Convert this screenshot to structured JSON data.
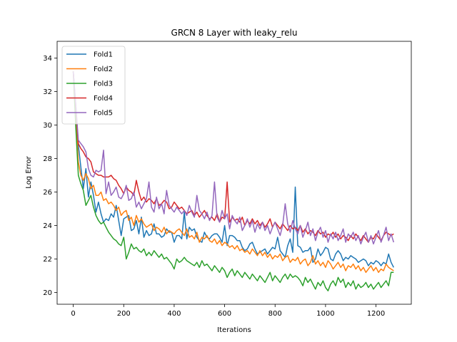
{
  "chart_data": {
    "type": "line",
    "title": "GRCN 8 Layer with leaky_relu",
    "xlabel": "Iterations",
    "ylabel": "Log Error",
    "xlim": [
      -64,
      1340
    ],
    "ylim": [
      19.3,
      35.0
    ],
    "xticks": [
      0,
      200,
      400,
      600,
      800,
      1000,
      1200
    ],
    "yticks": [
      20,
      22,
      24,
      26,
      28,
      30,
      32,
      34
    ],
    "grid": false,
    "legend_position": "top-left",
    "x": [
      0,
      10,
      20,
      30,
      40,
      50,
      60,
      70,
      80,
      90,
      100,
      110,
      120,
      130,
      140,
      150,
      160,
      170,
      180,
      190,
      200,
      210,
      220,
      230,
      240,
      250,
      260,
      270,
      280,
      290,
      300,
      310,
      320,
      330,
      340,
      350,
      360,
      370,
      380,
      390,
      400,
      410,
      420,
      430,
      440,
      450,
      460,
      470,
      480,
      490,
      500,
      510,
      520,
      530,
      540,
      550,
      560,
      570,
      580,
      590,
      600,
      610,
      620,
      630,
      640,
      650,
      660,
      670,
      680,
      690,
      700,
      710,
      720,
      730,
      740,
      750,
      760,
      770,
      780,
      790,
      800,
      810,
      820,
      830,
      840,
      850,
      860,
      870,
      880,
      890,
      900,
      910,
      920,
      930,
      940,
      950,
      960,
      970,
      980,
      990,
      1000,
      1010,
      1020,
      1030,
      1040,
      1050,
      1060,
      1070,
      1080,
      1090,
      1100,
      1110,
      1120,
      1130,
      1140,
      1150,
      1160,
      1170,
      1180,
      1190,
      1200,
      1210,
      1220,
      1230,
      1240,
      1250,
      1260,
      1270
    ],
    "series": [
      {
        "name": "Fold1",
        "color": "#1f77b4",
        "values": [
          33.2,
          31.2,
          28.8,
          27.5,
          26.2,
          27.4,
          25.7,
          26.6,
          25.8,
          24.8,
          25.4,
          24.7,
          24.2,
          24.4,
          24.3,
          24.7,
          24.5,
          25.2,
          24.3,
          23.4,
          24.4,
          24.5,
          24.6,
          23.7,
          23.8,
          24.3,
          23.5,
          24.5,
          23.3,
          23.7,
          23.4,
          23.5,
          24.1,
          23.5,
          23.5,
          23.3,
          23.4,
          23.8,
          23.6,
          23.6,
          23.0,
          23.4,
          23.4,
          23.2,
          24.8,
          23.2,
          23.9,
          23.7,
          23.8,
          23.3,
          23.1,
          23.0,
          23.6,
          23.3,
          23.2,
          23.4,
          23.5,
          23.5,
          23.3,
          23.0,
          24.0,
          22.8,
          23.4,
          23.4,
          23.3,
          23.1,
          23.1,
          22.7,
          22.5,
          22.6,
          22.9,
          23.0,
          22.6,
          22.3,
          22.4,
          22.5,
          22.6,
          22.3,
          22.5,
          22.7,
          22.6,
          23.3,
          22.5,
          22.3,
          22.1,
          22.8,
          23.2,
          22.4,
          26.3,
          22.8,
          22.7,
          22.4,
          22.5,
          22.5,
          22.7,
          21.8,
          22.0,
          22.6,
          22.2,
          22.4,
          22.7,
          22.6,
          22.0,
          21.9,
          22.3,
          22.5,
          22.3,
          21.9,
          22.1,
          22.0,
          22.2,
          22.1,
          22.0,
          21.8,
          21.9,
          22.0,
          21.9,
          21.6,
          21.8,
          21.7,
          21.9,
          21.8,
          21.6,
          21.8,
          21.7,
          22.3,
          21.8,
          21.5
        ]
      },
      {
        "name": "Fold2",
        "color": "#ff7f0e",
        "values": [
          33.2,
          30.5,
          27.8,
          27.0,
          26.7,
          27.1,
          26.8,
          26.2,
          26.4,
          25.8,
          25.8,
          26.0,
          25.5,
          25.6,
          25.3,
          25.4,
          25.2,
          24.9,
          25.1,
          24.6,
          24.8,
          24.9,
          24.3,
          24.5,
          24.0,
          24.6,
          24.2,
          24.4,
          24.1,
          23.9,
          24.0,
          24.1,
          23.7,
          23.9,
          23.8,
          23.6,
          23.9,
          23.5,
          23.7,
          23.6,
          23.5,
          23.7,
          23.8,
          23.6,
          23.4,
          23.8,
          23.3,
          23.4,
          23.2,
          23.6,
          23.0,
          23.3,
          23.2,
          23.4,
          23.1,
          23.0,
          23.2,
          22.9,
          23.1,
          22.8,
          23.0,
          22.9,
          22.7,
          22.8,
          22.6,
          22.8,
          22.5,
          22.6,
          22.4,
          22.5,
          22.3,
          22.6,
          22.4,
          22.2,
          22.5,
          22.2,
          22.4,
          22.1,
          22.3,
          22.0,
          22.2,
          22.1,
          22.3,
          21.9,
          22.1,
          22.2,
          21.8,
          22.0,
          21.9,
          22.1,
          21.7,
          21.9,
          22.0,
          21.6,
          21.8,
          22.2,
          21.7,
          21.9,
          21.6,
          21.8,
          21.5,
          21.9,
          21.7,
          21.4,
          21.6,
          21.8,
          21.5,
          21.7,
          21.3,
          21.6,
          21.5,
          21.7,
          21.4,
          21.6,
          21.3,
          21.5,
          21.2,
          21.4,
          21.6,
          21.3,
          21.5,
          21.2,
          21.4,
          21.3,
          21.7,
          21.5,
          21.4,
          21.3
        ]
      },
      {
        "name": "Fold3",
        "color": "#2ca02c",
        "values": [
          33.2,
          29.9,
          27.0,
          26.5,
          26.1,
          25.2,
          25.5,
          25.8,
          25.1,
          24.6,
          24.3,
          24.1,
          24.2,
          23.9,
          23.6,
          23.4,
          23.2,
          23.1,
          22.9,
          22.8,
          23.3,
          22.0,
          22.4,
          22.9,
          22.6,
          22.7,
          22.5,
          22.4,
          22.6,
          22.2,
          22.4,
          22.2,
          22.5,
          22.3,
          22.1,
          22.3,
          22.0,
          22.1,
          21.9,
          21.7,
          21.4,
          22.0,
          21.8,
          21.9,
          22.1,
          21.9,
          21.8,
          21.7,
          21.6,
          21.8,
          21.5,
          21.9,
          21.6,
          21.7,
          21.5,
          21.3,
          21.6,
          21.4,
          21.2,
          21.5,
          21.3,
          20.9,
          21.2,
          21.4,
          21.0,
          21.3,
          21.1,
          20.9,
          21.2,
          21.0,
          20.8,
          21.1,
          20.9,
          20.7,
          21.0,
          20.8,
          20.6,
          20.9,
          21.2,
          20.7,
          21.0,
          20.8,
          20.6,
          20.9,
          21.1,
          20.8,
          21.1,
          20.9,
          21.0,
          20.9,
          20.7,
          20.4,
          20.9,
          20.6,
          20.8,
          20.5,
          20.2,
          20.6,
          20.4,
          20.7,
          20.3,
          20.1,
          20.5,
          20.7,
          20.4,
          20.9,
          20.6,
          20.8,
          20.3,
          20.6,
          20.4,
          20.7,
          20.2,
          20.5,
          20.3,
          20.4,
          20.6,
          20.3,
          20.5,
          20.2,
          20.4,
          20.6,
          20.3,
          20.5,
          20.7,
          20.4,
          21.2,
          21.2
        ]
      },
      {
        "name": "Fold4",
        "color": "#d62728",
        "values": [
          33.2,
          31.0,
          28.9,
          28.6,
          28.4,
          28.1,
          28.0,
          27.8,
          27.2,
          27.1,
          27.0,
          27.0,
          26.9,
          26.9,
          26.9,
          27.0,
          26.8,
          26.7,
          26.4,
          26.2,
          25.9,
          26.3,
          26.1,
          26.0,
          25.8,
          26.7,
          26.0,
          25.5,
          25.7,
          25.4,
          25.6,
          25.5,
          25.3,
          25.6,
          25.2,
          25.3,
          25.5,
          25.4,
          25.0,
          25.1,
          25.4,
          25.2,
          25.0,
          25.1,
          24.9,
          24.7,
          24.8,
          24.9,
          24.6,
          24.8,
          24.5,
          24.7,
          24.9,
          24.6,
          24.4,
          24.5,
          24.3,
          24.7,
          24.2,
          24.5,
          24.4,
          26.6,
          24.2,
          24.5,
          24.3,
          24.4,
          24.2,
          24.5,
          24.0,
          24.3,
          24.1,
          24.4,
          24.1,
          24.3,
          24.0,
          24.2,
          23.9,
          24.1,
          24.4,
          23.9,
          24.2,
          24.0,
          23.8,
          24.1,
          23.9,
          23.7,
          24.0,
          23.8,
          23.9,
          23.7,
          24.0,
          23.6,
          23.8,
          23.5,
          23.7,
          23.6,
          23.4,
          23.7,
          23.5,
          23.6,
          23.3,
          23.5,
          23.4,
          23.6,
          23.3,
          23.5,
          23.2,
          23.4,
          23.3,
          23.1,
          23.4,
          23.2,
          23.5,
          23.3,
          23.1,
          23.4,
          23.2,
          23.0,
          23.3,
          23.2,
          23.5,
          23.3,
          23.1,
          23.4,
          23.6,
          23.5,
          23.4,
          23.5
        ]
      },
      {
        "name": "Fold5",
        "color": "#9467bd",
        "values": [
          33.2,
          31.2,
          29.1,
          28.9,
          28.7,
          28.4,
          27.4,
          27.0,
          26.9,
          27.3,
          27.2,
          27.3,
          28.5,
          25.9,
          26.6,
          25.8,
          26.0,
          26.3,
          25.7,
          25.6,
          25.9,
          26.4,
          25.5,
          25.6,
          26.0,
          25.1,
          25.4,
          25.0,
          25.3,
          25.6,
          26.6,
          25.1,
          24.8,
          25.7,
          25.0,
          25.3,
          24.7,
          26.1,
          25.2,
          25.0,
          24.8,
          25.1,
          24.9,
          24.7,
          24.9,
          24.6,
          25.2,
          24.8,
          24.5,
          25.8,
          24.9,
          24.7,
          24.4,
          24.8,
          24.3,
          24.6,
          26.6,
          24.5,
          24.2,
          24.9,
          24.4,
          24.7,
          23.8,
          24.6,
          24.3,
          24.1,
          24.5,
          23.7,
          24.0,
          24.4,
          23.9,
          24.3,
          23.6,
          24.1,
          23.8,
          24.2,
          23.7,
          24.0,
          23.5,
          23.9,
          24.2,
          23.8,
          23.4,
          24.0,
          25.3,
          24.1,
          23.6,
          24.3,
          23.8,
          23.5,
          24.0,
          23.3,
          23.7,
          24.2,
          23.4,
          23.8,
          23.1,
          23.6,
          23.9,
          23.3,
          23.7,
          23.0,
          23.5,
          23.2,
          23.6,
          23.1,
          23.4,
          23.8,
          23.0,
          23.5,
          23.3,
          23.6,
          23.1,
          23.4,
          22.9,
          23.3,
          23.6,
          23.0,
          23.4,
          22.9,
          23.3,
          23.7,
          23.0,
          23.4,
          23.9,
          23.1,
          23.5,
          23.0
        ]
      }
    ]
  }
}
